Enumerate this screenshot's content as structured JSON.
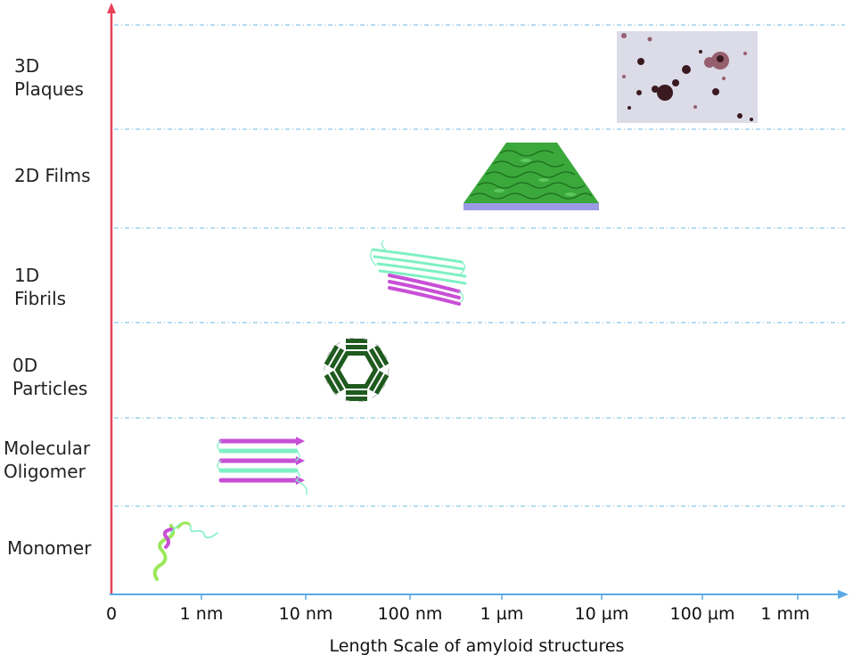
{
  "levels": [
    {
      "name": "3D Plaques",
      "lines": [
        "3D",
        "Plaques"
      ]
    },
    {
      "name": "2D Films",
      "lines": [
        "2D Films"
      ]
    },
    {
      "name": "1D Fibrils",
      "lines": [
        "1D",
        "Fibrils"
      ]
    },
    {
      "name": "0D Particles",
      "lines": [
        "0D",
        "Particles"
      ]
    },
    {
      "name": "Molecular Oligomer",
      "lines": [
        "Molecular",
        "Oligomer"
      ]
    },
    {
      "name": "Monomer",
      "lines": [
        "Monomer"
      ]
    }
  ],
  "x_axis": {
    "title": "Length Scale of amyloid structures",
    "ticks": [
      "0",
      "1 nm",
      "10 nm",
      "100 nm",
      "1 µm",
      "10 µm",
      "100 µm",
      "1 mm"
    ]
  },
  "colors": {
    "y_axis": "#e8405a",
    "x_axis": "#5aa9e6",
    "divider": "#8cc6e6",
    "beta_green": "#7ff0c4",
    "beta_magenta": "#c84fd6",
    "particle_green": "#1f5a1f",
    "film_green": "#3aa83a",
    "film_base": "#9a9ae6"
  },
  "illustrations": [
    "plaque-micrograph",
    "film-sheet",
    "fibril-ribbon",
    "particle-ring",
    "oligomer-stack",
    "monomer-coil"
  ]
}
